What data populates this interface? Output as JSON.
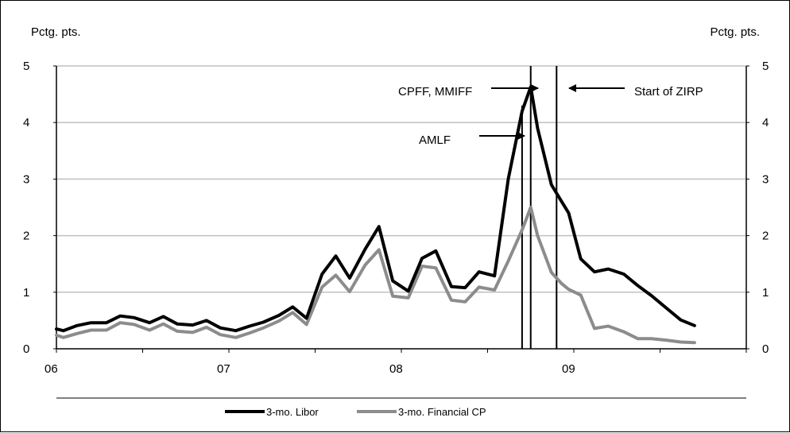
{
  "chart_data": {
    "type": "line",
    "left_axis_title": "Pctg. pts.",
    "right_axis_title": "Pctg. pts.",
    "ylim": [
      0,
      5
    ],
    "y_ticks": [
      "0",
      "1",
      "2",
      "3",
      "4",
      "5"
    ],
    "x_ticks": [
      {
        "label": "06",
        "x": 2006.0
      },
      {
        "label": "07",
        "x": 2007.0
      },
      {
        "label": "08",
        "x": 2008.0
      },
      {
        "label": "09",
        "x": 2009.0
      }
    ],
    "xlim": [
      2006.0,
      2010.0
    ],
    "grid": true,
    "legend_position": "bottom",
    "colors": {
      "libor": "#000000",
      "cp": "#8c8c8c",
      "grid": "#c0c0c0"
    },
    "series": [
      {
        "name": "3-mo. Libor",
        "color": "#000000",
        "x": [
          2006.0,
          2006.04,
          2006.12,
          2006.2,
          2006.29,
          2006.37,
          2006.45,
          2006.54,
          2006.62,
          2006.7,
          2006.79,
          2006.87,
          2006.95,
          2007.04,
          2007.12,
          2007.2,
          2007.29,
          2007.37,
          2007.45,
          2007.54,
          2007.62,
          2007.7,
          2007.79,
          2007.87,
          2007.95,
          2008.04,
          2008.12,
          2008.2,
          2008.29,
          2008.37,
          2008.45,
          2008.54,
          2008.62,
          2008.7,
          2008.75,
          2008.79,
          2008.87,
          2008.93,
          2008.97,
          2009.04,
          2009.12,
          2009.2,
          2009.29,
          2009.37,
          2009.45,
          2009.54,
          2009.62,
          2009.7
        ],
        "values": [
          0.35,
          0.32,
          0.41,
          0.46,
          0.46,
          0.58,
          0.55,
          0.46,
          0.57,
          0.44,
          0.42,
          0.5,
          0.37,
          0.32,
          0.4,
          0.47,
          0.59,
          0.74,
          0.54,
          1.32,
          1.64,
          1.25,
          1.76,
          2.16,
          1.2,
          1.02,
          1.6,
          1.73,
          1.1,
          1.08,
          1.36,
          1.29,
          3.0,
          4.2,
          4.63,
          3.9,
          2.9,
          2.6,
          2.4,
          1.59,
          1.36,
          1.41,
          1.32,
          1.12,
          0.94,
          0.71,
          0.51,
          0.41
        ]
      },
      {
        "name": "3-mo. Financial CP",
        "color": "#8c8c8c",
        "x": [
          2006.0,
          2006.04,
          2006.12,
          2006.2,
          2006.29,
          2006.37,
          2006.45,
          2006.54,
          2006.62,
          2006.7,
          2006.79,
          2006.87,
          2006.95,
          2007.04,
          2007.12,
          2007.2,
          2007.29,
          2007.37,
          2007.45,
          2007.54,
          2007.62,
          2007.7,
          2007.79,
          2007.87,
          2007.95,
          2008.04,
          2008.12,
          2008.2,
          2008.29,
          2008.37,
          2008.45,
          2008.54,
          2008.62,
          2008.7,
          2008.75,
          2008.79,
          2008.87,
          2008.93,
          2008.97,
          2009.04,
          2009.12,
          2009.2,
          2009.29,
          2009.37,
          2009.45,
          2009.54,
          2009.62,
          2009.7
        ],
        "values": [
          0.24,
          0.2,
          0.27,
          0.33,
          0.33,
          0.46,
          0.43,
          0.33,
          0.44,
          0.31,
          0.29,
          0.38,
          0.25,
          0.2,
          0.28,
          0.37,
          0.49,
          0.64,
          0.43,
          1.09,
          1.3,
          1.01,
          1.48,
          1.75,
          0.93,
          0.9,
          1.46,
          1.43,
          0.86,
          0.83,
          1.09,
          1.04,
          1.55,
          2.1,
          2.5,
          2.0,
          1.35,
          1.15,
          1.05,
          0.95,
          0.36,
          0.4,
          0.3,
          0.18,
          0.18,
          0.15,
          0.12,
          0.11
        ]
      }
    ],
    "event_lines": [
      {
        "x": 2008.7,
        "top": 4.3
      },
      {
        "x": 2008.75,
        "top": 5.0
      },
      {
        "x": 2008.9,
        "top": 5.0
      }
    ],
    "annotations": [
      {
        "name": "ann-cpff",
        "text": "CPFF, MMIFF"
      },
      {
        "name": "ann-amlf",
        "text": "AMLF"
      },
      {
        "name": "ann-zirp",
        "text": "Start of ZIRP"
      }
    ]
  }
}
